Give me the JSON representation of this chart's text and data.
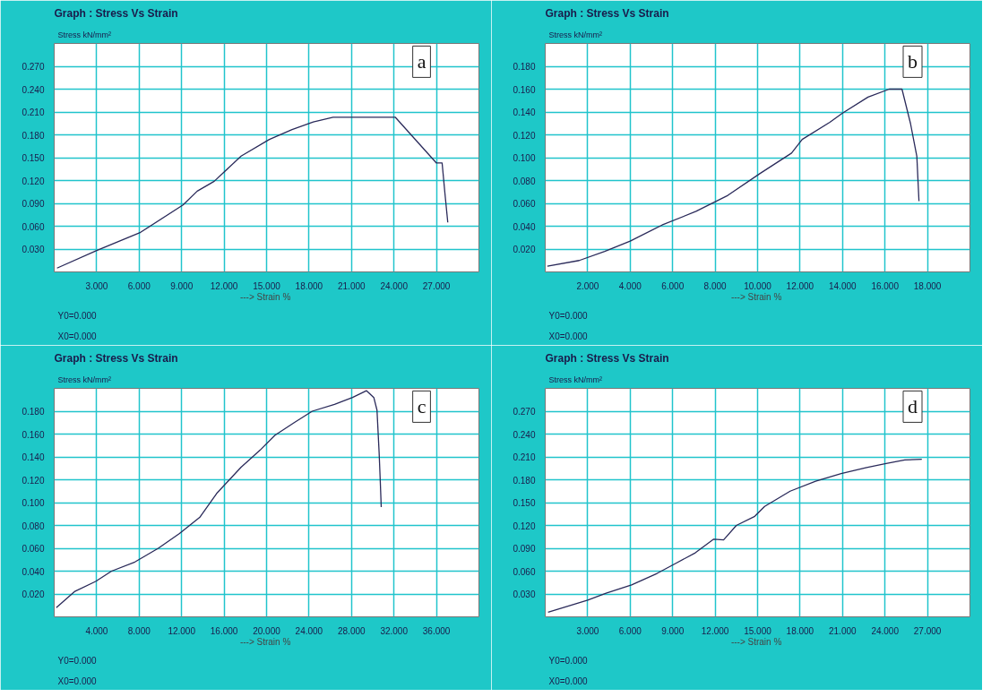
{
  "chart_data": [
    {
      "type": "line",
      "title": "Graph :  Stress Vs Strain",
      "xlabel": "---> Strain  %",
      "ylabel": "Stress kN/mm²",
      "annotations": [
        "a",
        "Y0=0.000",
        "X0=0.000"
      ],
      "grid": true,
      "xlim": [
        0,
        30
      ],
      "ylim": [
        0,
        0.3
      ],
      "xticks": [
        {
          "value": 3,
          "label": "3.000"
        },
        {
          "value": 6,
          "label": "6.000"
        },
        {
          "value": 9,
          "label": "9.000"
        },
        {
          "value": 12,
          "label": "12.000"
        },
        {
          "value": 15,
          "label": "15.000"
        },
        {
          "value": 18,
          "label": "18.000"
        },
        {
          "value": 21,
          "label": "21.000"
        },
        {
          "value": 24,
          "label": "24.000"
        },
        {
          "value": 27,
          "label": "27.000"
        }
      ],
      "yticks": [
        {
          "value": 0.03,
          "label": "0.030"
        },
        {
          "value": 0.06,
          "label": "0.060"
        },
        {
          "value": 0.09,
          "label": "0.090"
        },
        {
          "value": 0.12,
          "label": "0.120"
        },
        {
          "value": 0.15,
          "label": "0.150"
        },
        {
          "value": 0.18,
          "label": "0.180"
        },
        {
          "value": 0.21,
          "label": "0.210"
        },
        {
          "value": 0.24,
          "label": "0.240"
        },
        {
          "value": 0.27,
          "label": "0.270"
        }
      ],
      "series": [
        {
          "color": "#2a2a5a",
          "x": [
            0.2,
            3,
            6.1,
            9.1,
            10.1,
            11.3,
            13.2,
            15.2,
            16.8,
            18.3,
            19.7,
            24.1,
            27.0,
            27.4,
            27.6,
            27.8
          ],
          "values": [
            0.005,
            0.028,
            0.052,
            0.088,
            0.106,
            0.119,
            0.152,
            0.174,
            0.187,
            0.197,
            0.203,
            0.203,
            0.143,
            0.143,
            0.103,
            0.065
          ]
        }
      ]
    },
    {
      "type": "line",
      "title": "Graph :  Stress Vs Strain",
      "xlabel": "---> Strain  %",
      "ylabel": "Stress kN/mm²",
      "annotations": [
        "b",
        "Y0=0.000",
        "X0=0.000"
      ],
      "grid": true,
      "xlim": [
        0,
        20
      ],
      "ylim": [
        0,
        0.2
      ],
      "xticks": [
        {
          "value": 2,
          "label": "2.000"
        },
        {
          "value": 4,
          "label": "4.000"
        },
        {
          "value": 6,
          "label": "6.000"
        },
        {
          "value": 8,
          "label": "8.000"
        },
        {
          "value": 10,
          "label": "10.000"
        },
        {
          "value": 12,
          "label": "12.000"
        },
        {
          "value": 14,
          "label": "14.000"
        },
        {
          "value": 16,
          "label": "16.000"
        },
        {
          "value": 18,
          "label": "18.000"
        }
      ],
      "yticks": [
        {
          "value": 0.02,
          "label": "0.020"
        },
        {
          "value": 0.04,
          "label": "0.040"
        },
        {
          "value": 0.06,
          "label": "0.060"
        },
        {
          "value": 0.08,
          "label": "0.080"
        },
        {
          "value": 0.1,
          "label": "0.100"
        },
        {
          "value": 0.12,
          "label": "0.120"
        },
        {
          "value": 0.14,
          "label": "0.140"
        },
        {
          "value": 0.16,
          "label": "0.160"
        },
        {
          "value": 0.18,
          "label": "0.180"
        }
      ],
      "series": [
        {
          "color": "#2a2a5a",
          "x": [
            0.1,
            1.6,
            2.8,
            4.0,
            5.5,
            7.1,
            8.6,
            10.1,
            11.6,
            12.1,
            13.4,
            14.0,
            15.2,
            16.2,
            16.8,
            17.2,
            17.5,
            17.6
          ],
          "values": [
            0.005,
            0.01,
            0.018,
            0.027,
            0.041,
            0.053,
            0.067,
            0.086,
            0.104,
            0.116,
            0.131,
            0.139,
            0.153,
            0.16,
            0.16,
            0.13,
            0.101,
            0.062
          ]
        }
      ]
    },
    {
      "type": "line",
      "title": "Graph :  Stress Vs Strain",
      "xlabel": "---> Strain  %",
      "ylabel": "Stress kN/mm²",
      "annotations": [
        "c",
        "Y0=0.000",
        "X0=0.000"
      ],
      "grid": true,
      "xlim": [
        0,
        40
      ],
      "ylim": [
        0,
        0.2
      ],
      "xticks": [
        {
          "value": 4,
          "label": "4.000"
        },
        {
          "value": 8,
          "label": "8.000"
        },
        {
          "value": 12,
          "label": "12.000"
        },
        {
          "value": 16,
          "label": "16.000"
        },
        {
          "value": 20,
          "label": "20.000"
        },
        {
          "value": 24,
          "label": "24.000"
        },
        {
          "value": 28,
          "label": "28.000"
        },
        {
          "value": 32,
          "label": "32.000"
        },
        {
          "value": 36,
          "label": "36.000"
        }
      ],
      "yticks": [
        {
          "value": 0.02,
          "label": "0.020"
        },
        {
          "value": 0.04,
          "label": "0.040"
        },
        {
          "value": 0.06,
          "label": "0.060"
        },
        {
          "value": 0.08,
          "label": "0.080"
        },
        {
          "value": 0.1,
          "label": "0.100"
        },
        {
          "value": 0.12,
          "label": "0.120"
        },
        {
          "value": 0.14,
          "label": "0.140"
        },
        {
          "value": 0.16,
          "label": "0.160"
        },
        {
          "value": 0.18,
          "label": "0.180"
        }
      ],
      "series": [
        {
          "color": "#2a2a5a",
          "x": [
            0.2,
            1.9,
            3.9,
            5.4,
            7.6,
            9.8,
            11.8,
            13.7,
            15.3,
            16.5,
            17.6,
            19.4,
            20.8,
            22.6,
            24.3,
            26.4,
            28.1,
            29.4,
            30.1,
            30.4,
            30.6,
            30.7,
            30.8
          ],
          "values": [
            0.008,
            0.022,
            0.031,
            0.04,
            0.048,
            0.06,
            0.073,
            0.087,
            0.108,
            0.12,
            0.131,
            0.146,
            0.159,
            0.17,
            0.18,
            0.186,
            0.192,
            0.198,
            0.192,
            0.181,
            0.144,
            0.121,
            0.096
          ]
        }
      ]
    },
    {
      "type": "line",
      "title": "Graph :  Stress Vs Strain",
      "xlabel": "---> Strain  %",
      "ylabel": "Stress kN/mm²",
      "annotations": [
        "d",
        "Y0=0.000",
        "X0=0.000"
      ],
      "grid": true,
      "xlim": [
        0,
        30
      ],
      "ylim": [
        0,
        0.3
      ],
      "xticks": [
        {
          "value": 3,
          "label": "3.000"
        },
        {
          "value": 6,
          "label": "6.000"
        },
        {
          "value": 9,
          "label": "9.000"
        },
        {
          "value": 12,
          "label": "12.000"
        },
        {
          "value": 15,
          "label": "15.000"
        },
        {
          "value": 18,
          "label": "18.000"
        },
        {
          "value": 21,
          "label": "21.000"
        },
        {
          "value": 24,
          "label": "24.000"
        },
        {
          "value": 27,
          "label": "27.000"
        }
      ],
      "yticks": [
        {
          "value": 0.03,
          "label": "0.030"
        },
        {
          "value": 0.06,
          "label": "0.060"
        },
        {
          "value": 0.09,
          "label": "0.090"
        },
        {
          "value": 0.12,
          "label": "0.120"
        },
        {
          "value": 0.15,
          "label": "0.150"
        },
        {
          "value": 0.18,
          "label": "0.180"
        },
        {
          "value": 0.21,
          "label": "0.210"
        },
        {
          "value": 0.24,
          "label": "0.240"
        },
        {
          "value": 0.27,
          "label": "0.270"
        }
      ],
      "series": [
        {
          "color": "#2a2a5a",
          "x": [
            0.2,
            3.0,
            4.3,
            6.1,
            7.9,
            9.2,
            10.6,
            11.9,
            12.6,
            13.5,
            14.8,
            15.5,
            17.3,
            19.1,
            20.9,
            22.7,
            24.0,
            25.4,
            26.6
          ],
          "values": [
            0.006,
            0.022,
            0.031,
            0.042,
            0.057,
            0.07,
            0.084,
            0.102,
            0.101,
            0.12,
            0.132,
            0.145,
            0.165,
            0.178,
            0.188,
            0.196,
            0.201,
            0.206,
            0.207
          ]
        }
      ]
    }
  ]
}
